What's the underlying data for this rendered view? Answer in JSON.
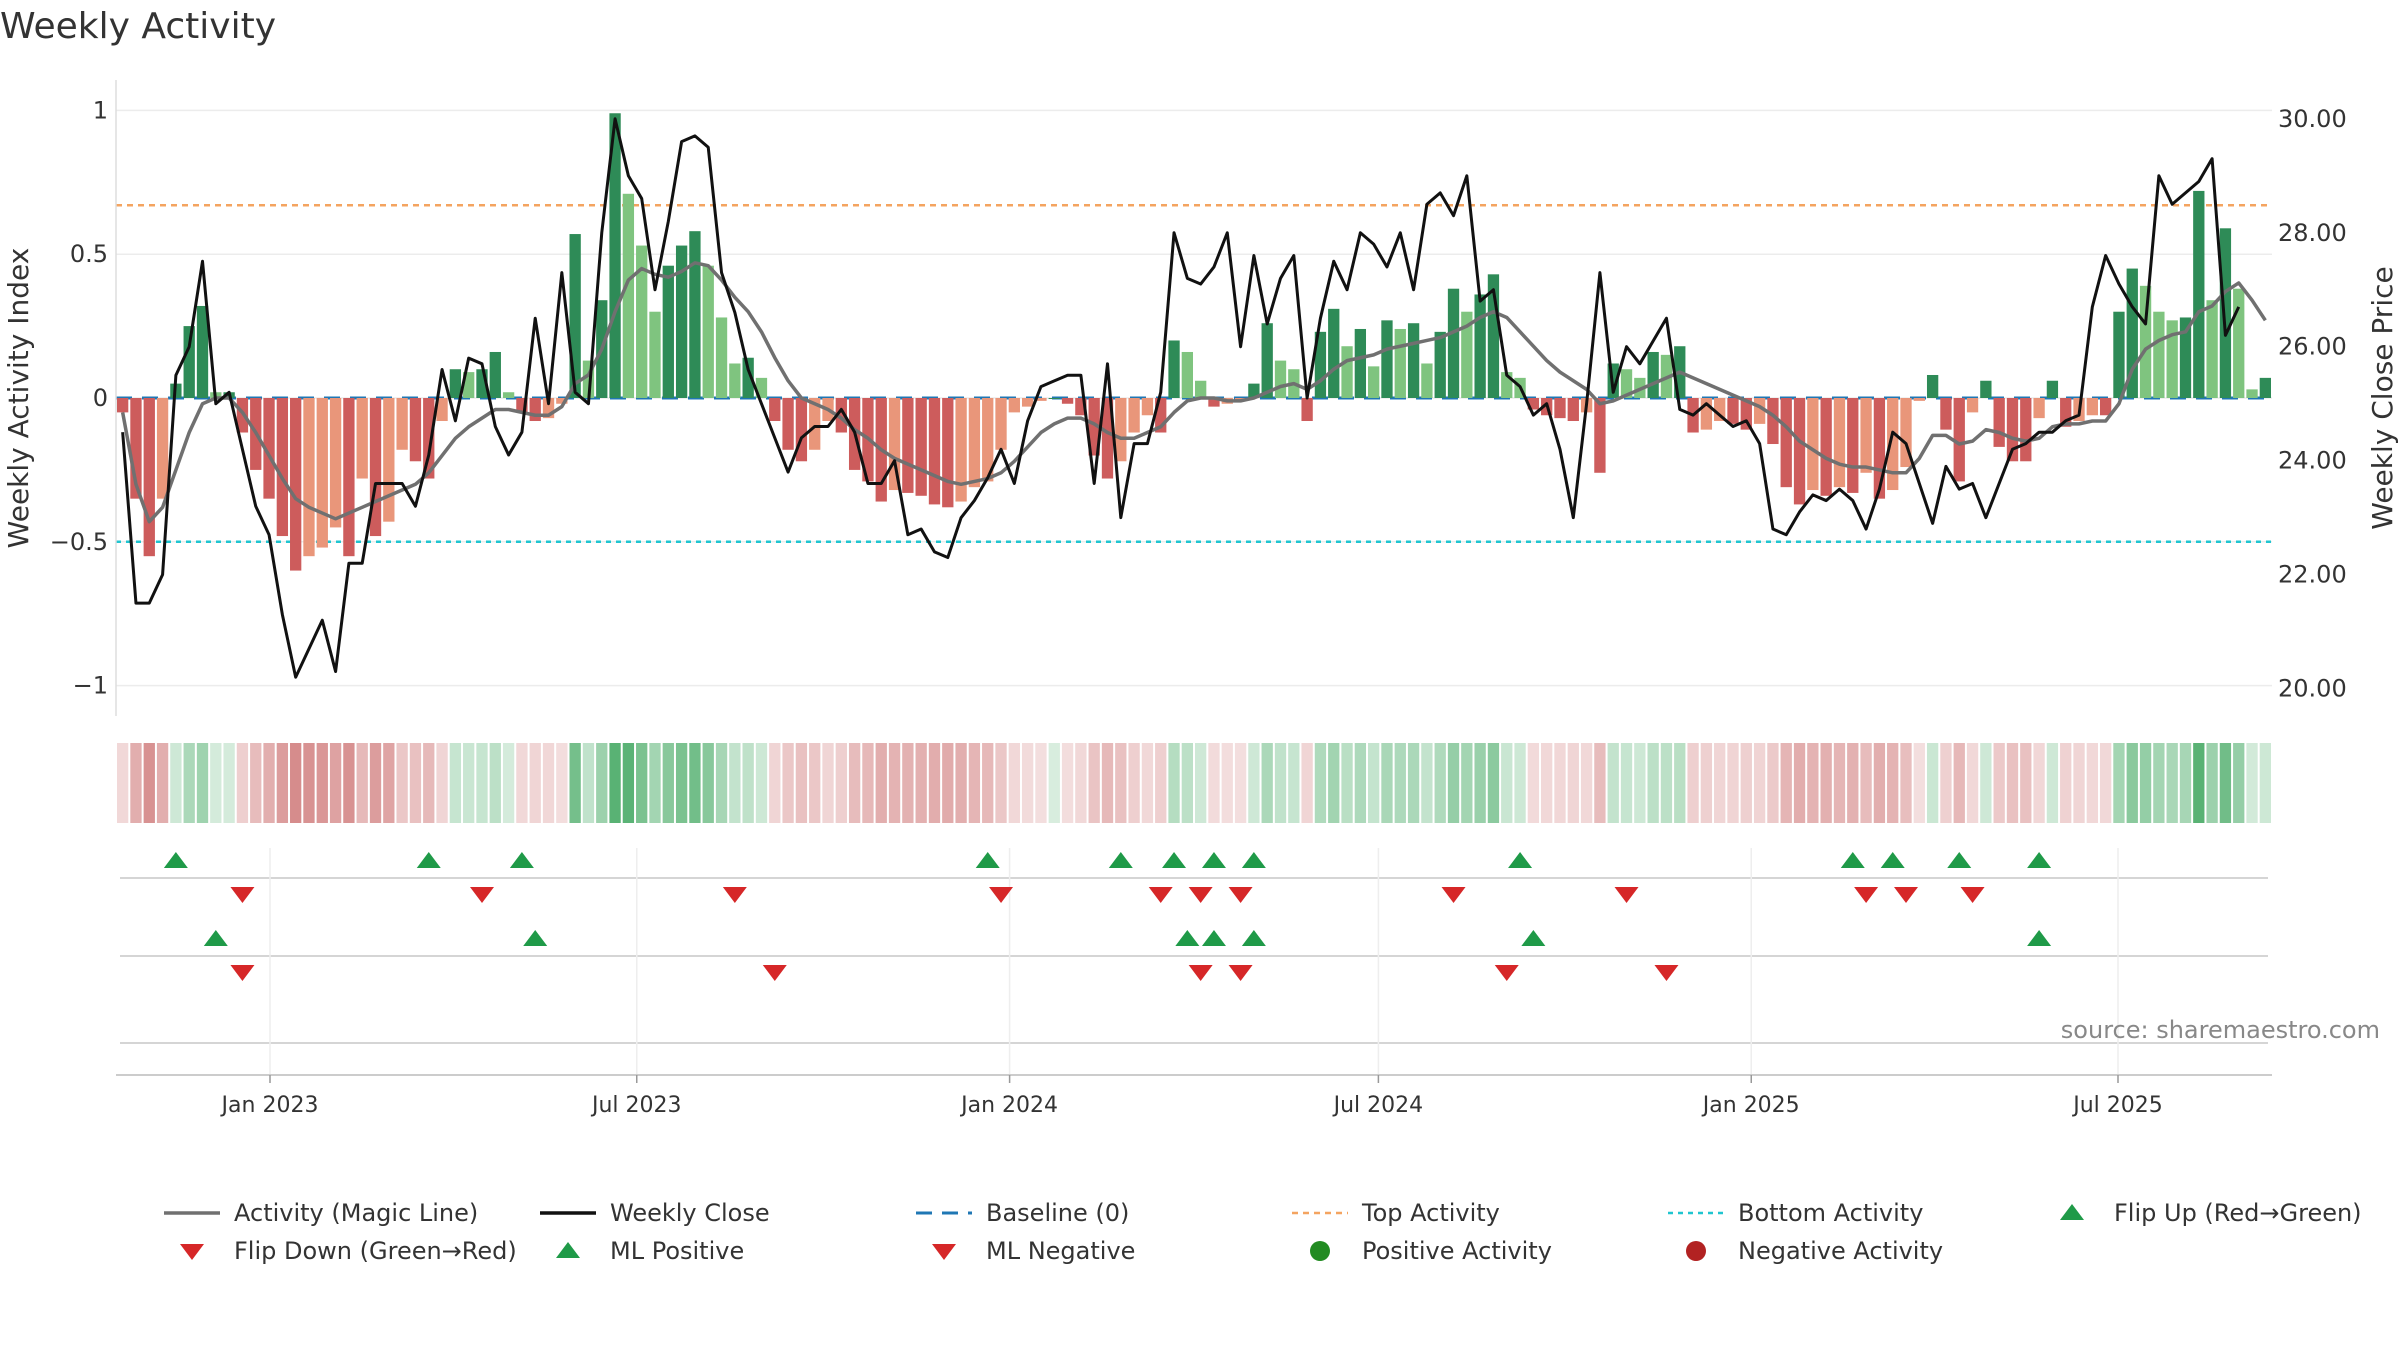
{
  "title": "Weekly Activity",
  "source_text": "source: sharemaestro.com",
  "colors": {
    "strong_green": "#2e8b57",
    "light_green": "#7fc47f",
    "strong_red": "#cd5c5c",
    "light_red": "#e9967a",
    "magic_line": "#707070",
    "close_line": "#111111",
    "baseline": "#1f77b4",
    "top_line": "#f4a460",
    "bottom_line": "#20c5d0",
    "flip_up": "#1f9a48",
    "flip_down": "#d62728",
    "negative_dot": "#b22222",
    "positive_dot": "#228b22"
  },
  "legend": [
    {
      "label": "Activity (Magic Line)",
      "symbol": "line-solid-gray"
    },
    {
      "label": "Weekly Close",
      "symbol": "line-solid-black"
    },
    {
      "label": "Baseline (0)",
      "symbol": "line-dashed-blue"
    },
    {
      "label": "Top Activity",
      "symbol": "line-dotted-orange"
    },
    {
      "label": "Bottom Activity",
      "symbol": "line-dotted-cyan"
    },
    {
      "label": "Flip Up (Red→Green)",
      "symbol": "triangle-up-green"
    },
    {
      "label": "Flip Down (Green→Red)",
      "symbol": "triangle-down-red"
    },
    {
      "label": "ML Positive",
      "symbol": "triangle-up-green"
    },
    {
      "label": "ML Negative",
      "symbol": "triangle-down-red"
    },
    {
      "label": "Positive Activity",
      "symbol": "circle-green"
    },
    {
      "label": "Negative Activity",
      "symbol": "circle-red"
    }
  ],
  "chart_data": {
    "type": "bar",
    "title": "Weekly Activity",
    "ylabel": "Weekly Activity Index",
    "y2label": "Weekly Close Price",
    "ylim": [
      -1.05,
      1.05
    ],
    "y2lim": [
      19.8,
      30.4
    ],
    "yticks": [
      1,
      0.5,
      0,
      -0.5,
      -1
    ],
    "ytick_labels": [
      "1",
      "0.5",
      "0",
      "−0.5",
      "−1"
    ],
    "y2ticks": [
      30,
      28,
      26,
      24,
      22,
      20
    ],
    "y2tick_labels": [
      "30.00",
      "28.00",
      "26.00",
      "24.00",
      "22.00",
      "20.00"
    ],
    "top_activity": 0.67,
    "bottom_activity": -0.5,
    "baseline": 0,
    "x_start": "2022-10-17",
    "x_end": "2025-09-15",
    "xticks": [
      {
        "date": "2023-01-01",
        "label": "Jan 2023"
      },
      {
        "date": "2023-07-01",
        "label": "Jul 2023"
      },
      {
        "date": "2024-01-01",
        "label": "Jan 2024"
      },
      {
        "date": "2024-07-01",
        "label": "Jul 2024"
      },
      {
        "date": "2025-01-01",
        "label": "Jan 2025"
      },
      {
        "date": "2025-07-01",
        "label": "Jul 2025"
      }
    ],
    "series": [
      {
        "name": "Weekly Activity Index (bars)",
        "values": [
          -0.05,
          -0.35,
          -0.55,
          -0.35,
          0.05,
          0.25,
          0.32,
          0.02,
          0.02,
          -0.12,
          -0.25,
          -0.35,
          -0.48,
          -0.6,
          -0.55,
          -0.52,
          -0.45,
          -0.55,
          -0.28,
          -0.48,
          -0.43,
          -0.18,
          -0.22,
          -0.28,
          -0.08,
          0.1,
          0.09,
          0.1,
          0.16,
          0.02,
          -0.05,
          -0.08,
          -0.07,
          -0.02,
          0.57,
          0.13,
          0.34,
          0.99,
          0.71,
          0.53,
          0.3,
          0.46,
          0.53,
          0.58,
          0.46,
          0.28,
          0.12,
          0.14,
          0.07,
          -0.08,
          -0.18,
          -0.22,
          -0.18,
          -0.08,
          -0.12,
          -0.25,
          -0.29,
          -0.36,
          -0.32,
          -0.33,
          -0.34,
          -0.37,
          -0.38,
          -0.36,
          -0.31,
          -0.29,
          -0.18,
          -0.05,
          -0.03,
          -0.01,
          0.0,
          -0.02,
          -0.06,
          -0.2,
          -0.28,
          -0.22,
          -0.12,
          -0.06,
          -0.12,
          0.2,
          0.16,
          0.06,
          -0.03,
          -0.02,
          -0.01,
          0.05,
          0.26,
          0.13,
          0.1,
          -0.08,
          0.23,
          0.31,
          0.18,
          0.24,
          0.11,
          0.27,
          0.24,
          0.26,
          0.12,
          0.23,
          0.38,
          0.3,
          0.36,
          0.43,
          0.09,
          0.07,
          -0.04,
          -0.06,
          -0.07,
          -0.08,
          -0.05,
          -0.26,
          0.12,
          0.1,
          0.07,
          0.16,
          0.15,
          0.18,
          -0.12,
          -0.11,
          -0.08,
          -0.09,
          -0.11,
          -0.09,
          -0.16,
          -0.31,
          -0.37,
          -0.32,
          -0.34,
          -0.31,
          -0.33,
          -0.26,
          -0.35,
          -0.32,
          -0.24,
          -0.01,
          0.08,
          -0.11,
          -0.29,
          -0.05,
          0.06,
          -0.17,
          -0.22,
          -0.22,
          -0.07,
          0.06,
          -0.1,
          -0.08,
          -0.06,
          -0.06,
          0.3,
          0.45,
          0.39,
          0.3,
          0.27,
          0.28,
          0.72,
          0.34,
          0.59,
          0.38,
          0.03,
          0.07
        ]
      },
      {
        "name": "Activity (Magic Line)",
        "values": [
          -0.05,
          -0.3,
          -0.43,
          -0.38,
          -0.25,
          -0.12,
          -0.02,
          0.0,
          0.0,
          -0.05,
          -0.12,
          -0.2,
          -0.28,
          -0.35,
          -0.38,
          -0.4,
          -0.42,
          -0.4,
          -0.38,
          -0.36,
          -0.34,
          -0.32,
          -0.3,
          -0.26,
          -0.2,
          -0.14,
          -0.1,
          -0.07,
          -0.04,
          -0.04,
          -0.05,
          -0.06,
          -0.06,
          -0.03,
          0.05,
          0.08,
          0.17,
          0.3,
          0.41,
          0.45,
          0.43,
          0.42,
          0.44,
          0.47,
          0.46,
          0.41,
          0.35,
          0.3,
          0.23,
          0.14,
          0.06,
          0.0,
          -0.02,
          -0.04,
          -0.07,
          -0.11,
          -0.14,
          -0.18,
          -0.21,
          -0.23,
          -0.25,
          -0.27,
          -0.29,
          -0.3,
          -0.29,
          -0.28,
          -0.26,
          -0.22,
          -0.17,
          -0.12,
          -0.09,
          -0.07,
          -0.07,
          -0.09,
          -0.12,
          -0.14,
          -0.14,
          -0.12,
          -0.1,
          -0.05,
          -0.01,
          0.0,
          0.0,
          -0.01,
          -0.01,
          0.0,
          0.02,
          0.04,
          0.05,
          0.03,
          0.06,
          0.1,
          0.13,
          0.14,
          0.15,
          0.17,
          0.18,
          0.19,
          0.2,
          0.21,
          0.23,
          0.25,
          0.28,
          0.3,
          0.28,
          0.23,
          0.18,
          0.13,
          0.09,
          0.06,
          0.03,
          -0.02,
          -0.01,
          0.01,
          0.03,
          0.05,
          0.07,
          0.09,
          0.07,
          0.05,
          0.03,
          0.01,
          -0.01,
          -0.03,
          -0.06,
          -0.1,
          -0.15,
          -0.18,
          -0.21,
          -0.23,
          -0.24,
          -0.24,
          -0.25,
          -0.26,
          -0.26,
          -0.21,
          -0.13,
          -0.13,
          -0.16,
          -0.15,
          -0.11,
          -0.12,
          -0.14,
          -0.15,
          -0.14,
          -0.1,
          -0.09,
          -0.09,
          -0.08,
          -0.08,
          -0.02,
          0.1,
          0.17,
          0.2,
          0.22,
          0.23,
          0.3,
          0.32,
          0.37,
          0.4,
          0.34,
          0.27
        ]
      },
      {
        "name": "Weekly Close",
        "values": [
          24.5,
          21.5,
          21.5,
          22.0,
          25.5,
          26.0,
          27.5,
          25.0,
          25.2,
          24.2,
          23.2,
          22.7,
          21.3,
          20.2,
          20.7,
          21.2,
          20.3,
          22.2,
          22.2,
          23.6,
          23.6,
          23.6,
          23.2,
          24.1,
          25.6,
          24.7,
          25.8,
          25.7,
          24.6,
          24.1,
          24.5,
          26.5,
          25.0,
          27.3,
          25.2,
          25.0,
          28.0,
          30.0,
          29.0,
          28.6,
          27.0,
          28.2,
          29.6,
          29.7,
          29.5,
          27.3,
          26.6,
          25.6,
          25.0,
          24.4,
          23.8,
          24.4,
          24.6,
          24.6,
          24.9,
          24.5,
          23.6,
          23.6,
          24.0,
          22.7,
          22.8,
          22.4,
          22.3,
          23.0,
          23.3,
          23.7,
          24.2,
          23.6,
          24.7,
          25.3,
          25.4,
          25.5,
          25.5,
          23.6,
          25.7,
          23.0,
          24.3,
          24.3,
          25.2,
          28.0,
          27.2,
          27.1,
          27.4,
          28.0,
          26.0,
          27.6,
          26.4,
          27.2,
          27.6,
          25.1,
          26.5,
          27.5,
          27.0,
          28.0,
          27.8,
          27.4,
          28.0,
          27.0,
          28.5,
          28.7,
          28.3,
          29.0,
          26.8,
          27.0,
          25.5,
          25.3,
          24.8,
          25.0,
          24.2,
          23.0,
          25.0,
          27.3,
          25.2,
          26.0,
          25.7,
          26.1,
          26.5,
          24.9,
          24.8,
          25.0,
          24.8,
          24.6,
          24.7,
          24.3,
          22.8,
          22.7,
          23.1,
          23.4,
          23.3,
          23.5,
          23.3,
          22.8,
          23.5,
          24.5,
          24.3,
          23.6,
          22.9,
          23.9,
          23.5,
          23.6,
          23.0,
          23.6,
          24.2,
          24.3,
          24.5,
          24.5,
          24.7,
          24.8,
          26.7,
          27.6,
          27.1,
          26.7,
          26.4,
          29.0,
          28.5,
          28.7,
          28.9,
          29.3,
          26.2,
          26.7
        ]
      }
    ],
    "tint_strip_values": [
      -0.05,
      -0.35,
      -0.55,
      -0.35,
      0.05,
      0.25,
      0.32,
      0.02,
      0.02,
      -0.12,
      -0.25,
      -0.35,
      -0.48,
      -0.6,
      -0.55,
      -0.52,
      -0.45,
      -0.55,
      -0.28,
      -0.48,
      -0.43,
      -0.18,
      -0.22,
      -0.28,
      -0.08,
      0.1,
      0.09,
      0.1,
      0.16,
      0.02,
      -0.05,
      -0.08,
      -0.07,
      -0.02,
      0.57,
      0.13,
      0.34,
      0.99,
      0.71,
      0.53,
      0.3,
      0.46,
      0.53,
      0.58,
      0.46,
      0.28,
      0.12,
      0.14,
      0.07,
      -0.08,
      -0.18,
      -0.22,
      -0.18,
      -0.08,
      -0.12,
      -0.25,
      -0.29,
      -0.36,
      -0.32,
      -0.33,
      -0.34,
      -0.37,
      -0.38,
      -0.36,
      -0.31,
      -0.29,
      -0.18,
      -0.05,
      -0.03,
      -0.01,
      0.0,
      -0.02,
      -0.06,
      -0.2,
      -0.28,
      -0.22,
      -0.12,
      -0.06,
      -0.12,
      0.2,
      0.16,
      0.06,
      -0.03,
      -0.02,
      -0.01,
      0.05,
      0.26,
      0.13,
      0.1,
      -0.08,
      0.23,
      0.31,
      0.18,
      0.24,
      0.11,
      0.27,
      0.24,
      0.26,
      0.12,
      0.23,
      0.38,
      0.3,
      0.36,
      0.43,
      0.09,
      0.07,
      -0.04,
      -0.06,
      -0.07,
      -0.08,
      -0.05,
      -0.26,
      0.12,
      0.1,
      0.07,
      0.16,
      0.15,
      0.18,
      -0.12,
      -0.11,
      -0.08,
      -0.09,
      -0.11,
      -0.09,
      -0.16,
      -0.31,
      -0.37,
      -0.32,
      -0.34,
      -0.31,
      -0.33,
      -0.26,
      -0.35,
      -0.32,
      -0.24,
      -0.01,
      0.08,
      -0.11,
      -0.29,
      -0.05,
      0.06,
      -0.17,
      -0.22,
      -0.22,
      -0.07,
      0.06,
      -0.1,
      -0.08,
      -0.06,
      -0.06,
      0.3,
      0.45,
      0.39,
      0.3,
      0.27,
      0.28,
      0.72,
      0.34,
      0.59,
      0.38,
      0.03,
      0.07
    ],
    "flip_up_weeks": [
      4,
      23,
      30,
      65,
      75,
      79,
      82,
      85,
      105,
      130,
      133,
      138,
      144
    ],
    "flip_down_weeks": [
      9,
      27,
      46,
      66,
      78,
      81,
      84,
      100,
      113,
      131,
      134,
      139
    ],
    "ml_positive_weeks": [
      7,
      31,
      80,
      82,
      85,
      106,
      144
    ],
    "ml_negative_weeks": [
      9,
      49,
      81,
      84,
      104,
      116
    ]
  }
}
